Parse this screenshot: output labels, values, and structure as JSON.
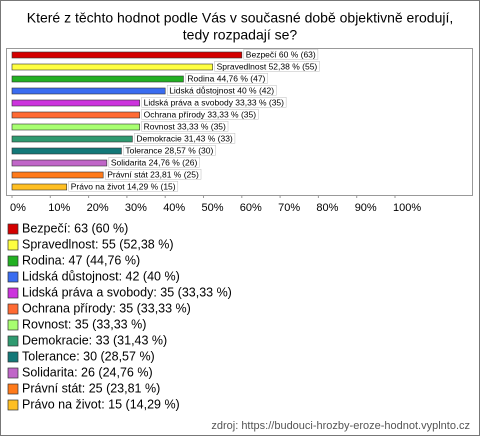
{
  "chart_data": {
    "type": "bar",
    "orientation": "horizontal",
    "title": [
      "Které z těchto hodnot podle Vás v současné době objektivně erodují,",
      "tedy rozpadají se?"
    ],
    "categories": [
      "Bezpečí",
      "Spravedlnost",
      "Rodina",
      "Lidská důstojnost",
      "Lidská práva a svobody",
      "Ochrana přírody",
      "Rovnost",
      "Demokracie",
      "Tolerance",
      "Solidarita",
      "Právní stát",
      "Právo na život"
    ],
    "values": [
      60,
      52.38,
      44.76,
      40,
      33.33,
      33.33,
      33.33,
      31.43,
      28.57,
      24.76,
      23.81,
      14.29
    ],
    "counts": [
      63,
      55,
      47,
      42,
      35,
      35,
      35,
      33,
      30,
      26,
      25,
      15
    ],
    "value_labels": [
      "Bezpečí 60 % (63)",
      "Spravedlnost 52,38 % (55)",
      "Rodina 44,76 % (47)",
      "Lidská důstojnost 40 % (42)",
      "Lidská práva a svobody 33,33 % (35)",
      "Ochrana přírody 33,33 % (35)",
      "Rovnost 33,33 % (35)",
      "Demokracie 31,43 % (33)",
      "Tolerance 28,57 % (30)",
      "Solidarita 24,76 % (26)",
      "Právní stát 23,81 % (25)",
      "Právo na život 14,29 % (15)"
    ],
    "legend_labels": [
      "Bezpečí: 63 (60 %)",
      "Spravedlnost: 55 (52,38 %)",
      "Rodina: 47 (44,76 %)",
      "Lidská důstojnost: 42 (40 %)",
      "Lidská práva a svobody: 35 (33,33 %)",
      "Ochrana přírody: 35 (33,33 %)",
      "Rovnost: 35 (33,33 %)",
      "Demokracie: 33 (31,43 %)",
      "Tolerance: 30 (28,57 %)",
      "Solidarita: 26 (24,76 %)",
      "Právní stát: 25 (23,81 %)",
      "Právo na život: 15 (14,29 %)"
    ],
    "colors": [
      "#d40000",
      "#ffff40",
      "#22b022",
      "#3a6cf0",
      "#cc33dd",
      "#ff6a33",
      "#a8ff70",
      "#2f9a70",
      "#137878",
      "#c066c8",
      "#ff7a1a",
      "#ffbf22"
    ],
    "xlim": [
      0,
      100
    ],
    "xticks": [
      {
        "value": 0,
        "label": "0%"
      },
      {
        "value": 10,
        "label": "10%"
      },
      {
        "value": 20,
        "label": "20%"
      },
      {
        "value": 30,
        "label": "30%"
      },
      {
        "value": 40,
        "label": "40%"
      },
      {
        "value": 50,
        "label": "50%"
      },
      {
        "value": 60,
        "label": "60%"
      },
      {
        "value": 70,
        "label": "70%"
      },
      {
        "value": 80,
        "label": "80%"
      },
      {
        "value": 90,
        "label": "90%"
      },
      {
        "value": 100,
        "label": "100%"
      }
    ],
    "source": "zdroj: https://budouci-hrozby-eroze-hodnot.vyplnto.cz"
  }
}
